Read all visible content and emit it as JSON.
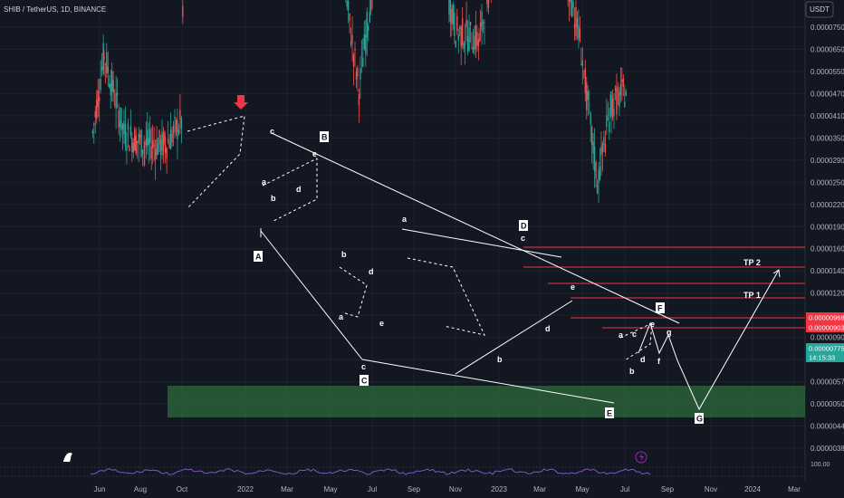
{
  "header": {
    "title": "SHIB / TetherUS, 1D, BINANCE",
    "currency_button": "USDT"
  },
  "colors": {
    "background": "#131722",
    "grid": "#1e222d",
    "up": "#26a69a",
    "down": "#ef5350",
    "annotation": "#ffffff",
    "target_line": "#f23645",
    "support_zone": "#2e6b3c",
    "rsi": "#7e57c2",
    "current_price_badge": "#26a69a"
  },
  "chart_data": {
    "type": "candlestick",
    "price_scale": "log",
    "ylim": [
      3.4e-06,
      9.5e-06
    ],
    "y_ticks": [
      "0.00007500",
      "0.00006500",
      "0.00005500",
      "0.00004700",
      "0.00004100",
      "0.00003500",
      "0.00002900",
      "0.00002500",
      "0.00002200",
      "0.00001900",
      "0.00001600",
      "0.00001400",
      "0.00001200",
      "0.00001050",
      "0.00000903",
      "0.00000650",
      "0.00000570",
      "0.00000500",
      "0.00000440",
      "0.00000385"
    ],
    "x_ticks": [
      "Jun",
      "Aug",
      "Oct",
      "2022",
      "Mar",
      "May",
      "Jul",
      "Sep",
      "Nov",
      "2023",
      "Mar",
      "May",
      "Jul",
      "Sep",
      "Nov",
      "2024",
      "Mar"
    ],
    "price_badges": [
      {
        "label": "0.00000968",
        "color": "#f23645"
      },
      {
        "label": "0.00000903",
        "color": "#f23645"
      },
      {
        "label": "0.00000775",
        "color": "#26a69a"
      },
      {
        "label": "14:15:33",
        "color": "#26a69a"
      }
    ],
    "rsi_scale_label": "100.00",
    "wave_labels": [
      "A",
      "B",
      "C",
      "D",
      "E",
      "F",
      "G",
      "a",
      "b",
      "c",
      "d",
      "e"
    ],
    "target_labels": [
      "TP 2",
      "TP 1"
    ],
    "candles": [
      {
        "date": "2021-05-15",
        "price": 7e-06
      },
      {
        "date": "2021-06-01",
        "price": 8.5e-06
      },
      {
        "date": "2021-07-01",
        "price": 7e-06
      },
      {
        "date": "2021-08-01",
        "price": 6.8e-06
      },
      {
        "date": "2021-09-01",
        "price": 6.8e-06
      },
      {
        "date": "2021-09-25",
        "price": 7.2e-06
      },
      {
        "date": "2021-10-05",
        "price": 2.5e-05
      },
      {
        "date": "2021-10-28",
        "price": 7.5e-05
      },
      {
        "date": "2021-11-15",
        "price": 4.5e-05
      },
      {
        "date": "2021-12-10",
        "price": 3.5e-05
      },
      {
        "date": "2022-01-10",
        "price": 2.9e-05
      },
      {
        "date": "2022-01-22",
        "price": 1.85e-05
      },
      {
        "date": "2022-02-10",
        "price": 3e-05
      },
      {
        "date": "2022-03-10",
        "price": 2.3e-05
      },
      {
        "date": "2022-03-28",
        "price": 2.9e-05
      },
      {
        "date": "2022-05-01",
        "price": 2e-05
      },
      {
        "date": "2022-05-15",
        "price": 1.15e-05
      },
      {
        "date": "2022-06-18",
        "price": 7.8e-06
      },
      {
        "date": "2022-07-15",
        "price": 1.1e-05
      },
      {
        "date": "2022-08-15",
        "price": 1.75e-05
      },
      {
        "date": "2022-09-15",
        "price": 1.2e-05
      },
      {
        "date": "2022-10-15",
        "price": 1.1e-05
      },
      {
        "date": "2022-11-10",
        "price": 9e-06
      },
      {
        "date": "2022-12-15",
        "price": 8.8e-06
      },
      {
        "date": "2023-01-10",
        "price": 1.1e-05
      },
      {
        "date": "2023-02-05",
        "price": 1.55e-05
      },
      {
        "date": "2023-03-10",
        "price": 1.05e-05
      },
      {
        "date": "2023-04-15",
        "price": 1.12e-05
      },
      {
        "date": "2023-05-15",
        "price": 8.8e-06
      },
      {
        "date": "2023-06-10",
        "price": 6.2e-06
      },
      {
        "date": "2023-07-01",
        "price": 7.5e-06
      },
      {
        "date": "2023-07-25",
        "price": 7.8e-06
      }
    ]
  }
}
